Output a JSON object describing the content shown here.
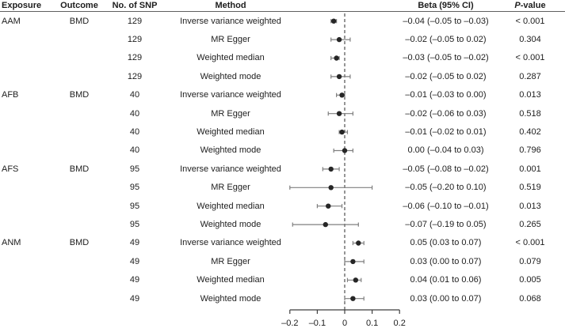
{
  "table": {
    "headers": {
      "exposure": "Exposure",
      "outcome": "Outcome",
      "n_snp": "No. of SNP",
      "method": "Method",
      "beta": "Beta (95% CI)",
      "pvalue_italic": "P",
      "pvalue_rest": "-value"
    }
  },
  "colors": {
    "text": "#1d1d1d",
    "header_rule": "#5f5f5f",
    "ci_line": "#7f7f7f",
    "point": "#262626",
    "zero_line": "#3f3f3f",
    "axis": "#3f3f3f"
  },
  "chart_data": {
    "type": "forest",
    "xlabel": "",
    "xlim": [
      -0.2,
      0.2
    ],
    "zero_line": 0,
    "grid": false,
    "x_ticks": [
      {
        "value": -0.2,
        "label": "–0.2"
      },
      {
        "value": -0.1,
        "label": "–0.1"
      },
      {
        "value": 0,
        "label": "0"
      },
      {
        "value": 0.1,
        "label": "0.1"
      },
      {
        "value": 0.2,
        "label": "0.2"
      }
    ],
    "rows": [
      {
        "exposure": "AAM",
        "outcome": "BMD",
        "n_snp": "129",
        "method": "Inverse variance weighted",
        "beta": -0.04,
        "ci_low": -0.05,
        "ci_high": -0.03,
        "beta_text": "–0.04 (–0.05 to –0.03)",
        "p_value": "< 0.001"
      },
      {
        "exposure": "",
        "outcome": "",
        "n_snp": "129",
        "method": "MR Egger",
        "beta": -0.02,
        "ci_low": -0.05,
        "ci_high": 0.02,
        "beta_text": "–0.02 (–0.05 to 0.02)",
        "p_value": "0.304"
      },
      {
        "exposure": "",
        "outcome": "",
        "n_snp": "129",
        "method": "Weighted median",
        "beta": -0.03,
        "ci_low": -0.05,
        "ci_high": -0.02,
        "beta_text": "–0.03 (–0.05 to –0.02)",
        "p_value": "< 0.001"
      },
      {
        "exposure": "",
        "outcome": "",
        "n_snp": "129",
        "method": "Weighted mode",
        "beta": -0.02,
        "ci_low": -0.05,
        "ci_high": 0.02,
        "beta_text": "–0.02 (–0.05 to 0.02)",
        "p_value": "0.287"
      },
      {
        "exposure": "AFB",
        "outcome": "BMD",
        "n_snp": "40",
        "method": "Inverse variance weighted",
        "beta": -0.01,
        "ci_low": -0.03,
        "ci_high": 0.0,
        "beta_text": "–0.01 (–0.03 to 0.00)",
        "p_value": "0.013"
      },
      {
        "exposure": "",
        "outcome": "",
        "n_snp": "40",
        "method": "MR Egger",
        "beta": -0.02,
        "ci_low": -0.06,
        "ci_high": 0.03,
        "beta_text": "–0.02 (–0.06 to 0.03)",
        "p_value": "0.518"
      },
      {
        "exposure": "",
        "outcome": "",
        "n_snp": "40",
        "method": "Weighted median",
        "beta": -0.01,
        "ci_low": -0.02,
        "ci_high": 0.01,
        "beta_text": "–0.01 (–0.02 to 0.01)",
        "p_value": "0.402"
      },
      {
        "exposure": "",
        "outcome": "",
        "n_snp": "40",
        "method": "Weighted mode",
        "beta": 0.0,
        "ci_low": -0.04,
        "ci_high": 0.03,
        "beta_text": "0.00 (–0.04 to 0.03)",
        "p_value": "0.796"
      },
      {
        "exposure": "AFS",
        "outcome": "BMD",
        "n_snp": "95",
        "method": "Inverse variance weighted",
        "beta": -0.05,
        "ci_low": -0.08,
        "ci_high": -0.02,
        "beta_text": "–0.05 (–0.08 to –0.02)",
        "p_value": "0.001"
      },
      {
        "exposure": "",
        "outcome": "",
        "n_snp": "95",
        "method": "MR Egger",
        "beta": -0.05,
        "ci_low": -0.2,
        "ci_high": 0.1,
        "beta_text": "–0.05 (–0.20 to 0.10)",
        "p_value": "0.519"
      },
      {
        "exposure": "",
        "outcome": "",
        "n_snp": "95",
        "method": "Weighted median",
        "beta": -0.06,
        "ci_low": -0.1,
        "ci_high": -0.01,
        "beta_text": "–0.06 (–0.10 to –0.01)",
        "p_value": "0.013"
      },
      {
        "exposure": "",
        "outcome": "",
        "n_snp": "95",
        "method": "Weighted mode",
        "beta": -0.07,
        "ci_low": -0.19,
        "ci_high": 0.05,
        "beta_text": "–0.07 (–0.19 to 0.05)",
        "p_value": "0.265"
      },
      {
        "exposure": "ANM",
        "outcome": "BMD",
        "n_snp": "49",
        "method": "Inverse variance weighted",
        "beta": 0.05,
        "ci_low": 0.03,
        "ci_high": 0.07,
        "beta_text": "0.05 (0.03 to 0.07)",
        "p_value": "< 0.001"
      },
      {
        "exposure": "",
        "outcome": "",
        "n_snp": "49",
        "method": "MR Egger",
        "beta": 0.03,
        "ci_low": 0.0,
        "ci_high": 0.07,
        "beta_text": "0.03 (0.00 to 0.07)",
        "p_value": "0.079"
      },
      {
        "exposure": "",
        "outcome": "",
        "n_snp": "49",
        "method": "Weighted median",
        "beta": 0.04,
        "ci_low": 0.01,
        "ci_high": 0.06,
        "beta_text": "0.04 (0.01 to 0.06)",
        "p_value": "0.005"
      },
      {
        "exposure": "",
        "outcome": "",
        "n_snp": "49",
        "method": "Weighted mode",
        "beta": 0.03,
        "ci_low": 0.0,
        "ci_high": 0.07,
        "beta_text": "0.03 (0.00 to 0.07)",
        "p_value": "0.068"
      }
    ]
  }
}
